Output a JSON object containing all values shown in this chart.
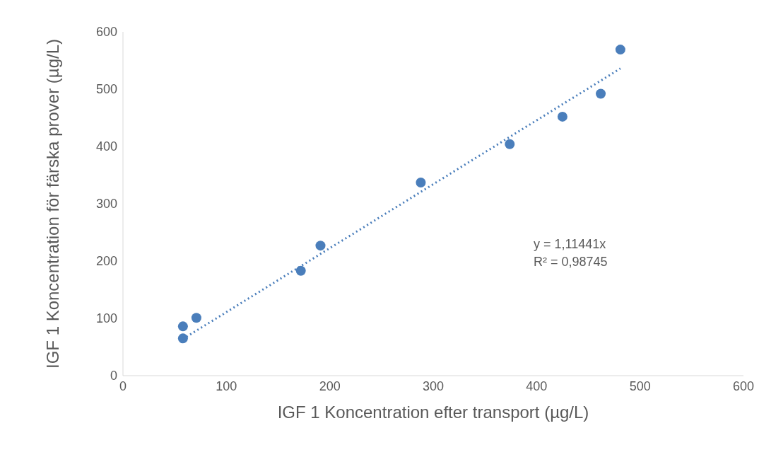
{
  "chart_data": {
    "type": "scatter",
    "xlabel": "IGF 1 Koncentration efter transport (µg/L)",
    "ylabel": "IGF 1 Koncentration för färska prover (µg/L)",
    "xlim": [
      0,
      600
    ],
    "xticks": [
      0,
      100,
      200,
      300,
      400,
      500,
      600
    ],
    "ylim": [
      0,
      600
    ],
    "yticks": [
      0,
      100,
      200,
      300,
      400,
      500,
      600
    ],
    "grid": false,
    "legend": false,
    "annotations": [
      "y = 1,11441x",
      "R² = 0,98745"
    ],
    "series": [
      {
        "color": "#4a7ebb",
        "marker": "circle",
        "x": [
          58,
          58,
          71,
          172,
          191,
          288,
          374,
          425,
          462,
          481
        ],
        "values": [
          65,
          86,
          101,
          183,
          227,
          337,
          404,
          452,
          492,
          569
        ]
      },
      {
        "type": "line",
        "color": "#4a7ebb",
        "line_style": "dotted",
        "x": [
          58,
          481
        ],
        "values": [
          64,
          536
        ]
      }
    ]
  }
}
